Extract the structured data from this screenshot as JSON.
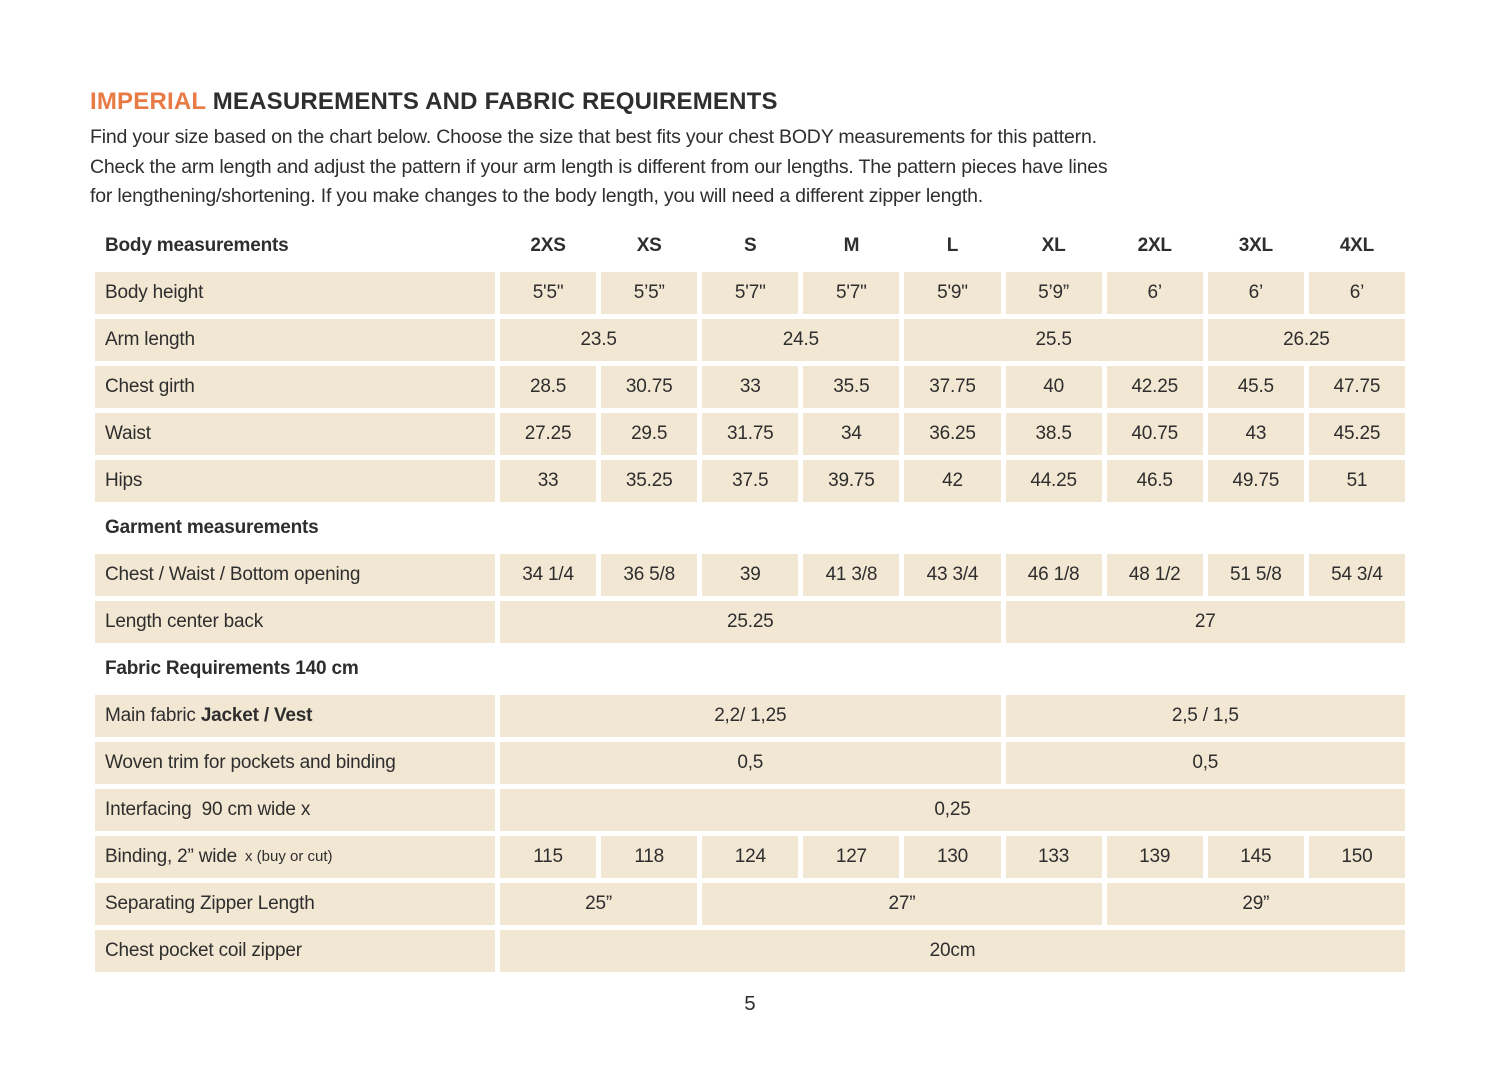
{
  "title": {
    "highlight": "IMPERIAL",
    "rest": "MEASUREMENTS AND FABRIC REQUIREMENTS"
  },
  "intro_lines": [
    "Find your size based on the chart below. Choose the size that best fits your chest BODY measurements for this pattern.",
    "Check the arm length and adjust the pattern if your arm length is different from our lengths. The pattern pieces have lines",
    "for lengthening/shortening. If you make changes to the body length, you will need a different zipper length."
  ],
  "colors": {
    "accent_orange": "#e87a45",
    "cell_beige": "#f2e7d3",
    "text": "#2e2e2e"
  },
  "table": {
    "header": {
      "label": "Body measurements",
      "columns": [
        "2XS",
        "XS",
        "S",
        "M",
        "L",
        "XL",
        "2XL",
        "3XL",
        "4XL"
      ]
    },
    "rows": [
      {
        "type": "data",
        "label": "Body height",
        "cells": [
          {
            "text": "5'5\"",
            "span": 1
          },
          {
            "text": "5’5”",
            "span": 1
          },
          {
            "text": "5'7\"",
            "span": 1
          },
          {
            "text": "5'7\"",
            "span": 1
          },
          {
            "text": "5'9\"",
            "span": 1
          },
          {
            "text": "5’9”",
            "span": 1
          },
          {
            "text": "6’",
            "span": 1
          },
          {
            "text": "6’",
            "span": 1
          },
          {
            "text": "6’",
            "span": 1
          }
        ]
      },
      {
        "type": "data",
        "label": "Arm length",
        "cells": [
          {
            "text": "23.5",
            "span": 2
          },
          {
            "text": "24.5",
            "span": 2
          },
          {
            "text": "25.5",
            "span": 3
          },
          {
            "text": "26.25",
            "span": 2
          }
        ]
      },
      {
        "type": "data",
        "label": "Chest girth",
        "cells": [
          {
            "text": "28.5",
            "span": 1
          },
          {
            "text": "30.75",
            "span": 1
          },
          {
            "text": "33",
            "span": 1
          },
          {
            "text": "35.5",
            "span": 1
          },
          {
            "text": "37.75",
            "span": 1
          },
          {
            "text": "40",
            "span": 1
          },
          {
            "text": "42.25",
            "span": 1
          },
          {
            "text": "45.5",
            "span": 1
          },
          {
            "text": "47.75",
            "span": 1
          }
        ]
      },
      {
        "type": "data",
        "label": "Waist",
        "cells": [
          {
            "text": "27.25",
            "span": 1
          },
          {
            "text": "29.5",
            "span": 1
          },
          {
            "text": "31.75",
            "span": 1
          },
          {
            "text": "34",
            "span": 1
          },
          {
            "text": "36.25",
            "span": 1
          },
          {
            "text": "38.5",
            "span": 1
          },
          {
            "text": "40.75",
            "span": 1
          },
          {
            "text": "43",
            "span": 1
          },
          {
            "text": "45.25",
            "span": 1
          }
        ]
      },
      {
        "type": "data",
        "label": "Hips",
        "cells": [
          {
            "text": "33",
            "span": 1
          },
          {
            "text": "35.25",
            "span": 1
          },
          {
            "text": "37.5",
            "span": 1
          },
          {
            "text": "39.75",
            "span": 1
          },
          {
            "text": "42",
            "span": 1
          },
          {
            "text": "44.25",
            "span": 1
          },
          {
            "text": "46.5",
            "span": 1
          },
          {
            "text": "49.75",
            "span": 1
          },
          {
            "text": "51",
            "span": 1
          }
        ]
      },
      {
        "type": "section",
        "label": "Garment measurements"
      },
      {
        "type": "data",
        "label": "Chest / Waist / Bottom opening",
        "cells": [
          {
            "text": "34 1/4",
            "span": 1
          },
          {
            "text": "36 5/8",
            "span": 1
          },
          {
            "text": "39",
            "span": 1
          },
          {
            "text": "41 3/8",
            "span": 1
          },
          {
            "text": "43 3/4",
            "span": 1
          },
          {
            "text": "46 1/8",
            "span": 1
          },
          {
            "text": "48 1/2",
            "span": 1
          },
          {
            "text": "51 5/8",
            "span": 1
          },
          {
            "text": "54 3/4",
            "span": 1
          }
        ]
      },
      {
        "type": "data",
        "label": "Length center back",
        "cells": [
          {
            "text": "25.25",
            "span": 5
          },
          {
            "text": "27",
            "span": 4
          }
        ]
      },
      {
        "type": "section",
        "label": "Fabric Requirements 140 cm"
      },
      {
        "type": "data",
        "label": "Main fabric ",
        "label_bold": "Jacket / Vest",
        "cells": [
          {
            "text": "2,2/ 1,25",
            "span": 5
          },
          {
            "text": "2,5 / 1,5",
            "span": 4
          }
        ]
      },
      {
        "type": "data",
        "label": "Woven trim for pockets and binding",
        "cells": [
          {
            "text": "0,5",
            "span": 5
          },
          {
            "text": "0,5",
            "span": 4
          }
        ]
      },
      {
        "type": "data",
        "label": "Interfacing  90 cm wide x",
        "cells": [
          {
            "text": "0,25",
            "span": 9
          }
        ]
      },
      {
        "type": "data",
        "label": "Binding, 2” wide",
        "label_small": "x (buy or cut)",
        "cells": [
          {
            "text": "115",
            "span": 1
          },
          {
            "text": "118",
            "span": 1
          },
          {
            "text": "124",
            "span": 1
          },
          {
            "text": "127",
            "span": 1
          },
          {
            "text": "130",
            "span": 1
          },
          {
            "text": "133",
            "span": 1
          },
          {
            "text": "139",
            "span": 1
          },
          {
            "text": "145",
            "span": 1
          },
          {
            "text": "150",
            "span": 1
          }
        ]
      },
      {
        "type": "data",
        "label": "Separating Zipper Length",
        "cells": [
          {
            "text": "25”",
            "span": 2
          },
          {
            "text": "27”",
            "span": 4
          },
          {
            "text": "29”",
            "span": 3
          }
        ]
      },
      {
        "type": "data",
        "label": "Chest pocket coil zipper",
        "cells": [
          {
            "text": "20cm",
            "span": 9
          }
        ]
      }
    ]
  },
  "page_number": "5"
}
